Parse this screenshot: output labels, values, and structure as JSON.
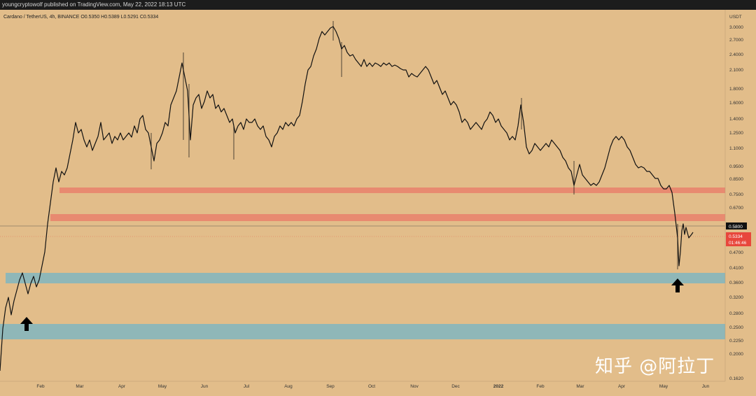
{
  "header": {
    "publish_line": "youngcryptowolf published on TradingView.com, May 22, 2022 18:13 UTC"
  },
  "symbol": {
    "line": "Cardano / TetherUS, 4h, BINANCE  O0.5350  H0.5389  L0.5291  C0.5334"
  },
  "price_axis": {
    "currency": "USDT",
    "ticks": [
      "3.0000",
      "2.7000",
      "2.4000",
      "2.1000",
      "1.8000",
      "1.6000",
      "1.4000",
      "1.2500",
      "1.1000",
      "0.9500",
      "0.8500",
      "0.7500",
      "0.6700",
      "0.5800",
      "0.4700",
      "0.4100",
      "0.3600",
      "0.3200",
      "0.2800",
      "0.2500",
      "0.2250",
      "0.2000",
      "0.1620"
    ],
    "marker_level": {
      "label": "0.5800",
      "value": 0.58
    },
    "current_price": {
      "label": "0.5334",
      "countdown": "01:46:46",
      "value": 0.5334,
      "color": "#e8473c"
    }
  },
  "time_axis": {
    "labels": [
      "Feb",
      "Mar",
      "Apr",
      "May",
      "Jun",
      "Jul",
      "Aug",
      "Sep",
      "Oct",
      "Nov",
      "Dec",
      "2022",
      "Feb",
      "Mar",
      "Apr",
      "May",
      "Jun"
    ]
  },
  "zones": [
    {
      "kind": "resistance",
      "low": 0.76,
      "high": 0.8,
      "color": "#e88a70"
    },
    {
      "kind": "resistance",
      "low": 0.615,
      "high": 0.655,
      "color": "#e88a70"
    },
    {
      "kind": "support",
      "low": 0.36,
      "high": 0.395,
      "color": "#8fb7b8"
    },
    {
      "kind": "support",
      "low": 0.23,
      "high": 0.26,
      "color": "#8fb7b8"
    }
  ],
  "colors": {
    "background": "#e2bd8a",
    "candles": "#111111",
    "topbar": "#1c1c1c"
  },
  "icons": {
    "arrow_left": "arrow-up-icon",
    "arrow_right": "arrow-up-icon"
  },
  "watermark": "知乎 @阿拉丁"
}
